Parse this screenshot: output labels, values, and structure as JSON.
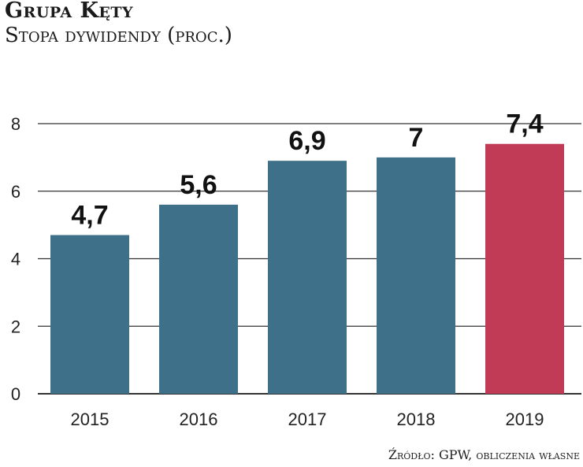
{
  "chart_data": {
    "type": "bar",
    "title": "Grupa Kęty",
    "subtitle": "Stopa dywidendy (proc.)",
    "categories": [
      "2015",
      "2016",
      "2017",
      "2018",
      "2019"
    ],
    "values": [
      4.7,
      5.6,
      6.9,
      7,
      7.4
    ],
    "value_labels": [
      "4,7",
      "5,6",
      "6,9",
      "7",
      "7,4"
    ],
    "yticks": [
      0,
      2,
      4,
      6,
      8
    ],
    "ylim": [
      0,
      8
    ],
    "xlabel": "",
    "ylabel": "",
    "grid": true,
    "colors": [
      "#3e7189",
      "#3e7189",
      "#3e7189",
      "#3e7189",
      "#c13b56"
    ],
    "source": "Źródło: GPW, obliczenia własne"
  }
}
